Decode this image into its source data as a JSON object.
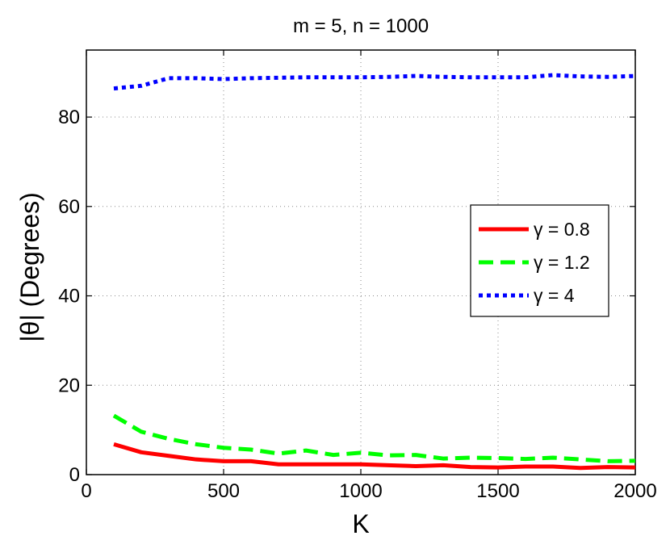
{
  "chart_data": {
    "type": "line",
    "title": "m = 5, n = 1000",
    "xlabel": "K",
    "ylabel": "|θ| (Degrees)",
    "xlim": [
      0,
      2000
    ],
    "ylim": [
      0,
      95
    ],
    "xticks": [
      0,
      500,
      1000,
      1500,
      2000
    ],
    "yticks": [
      0,
      20,
      40,
      60,
      80
    ],
    "grid": true,
    "legend_position": "center-right",
    "x": [
      100,
      200,
      300,
      400,
      500,
      600,
      700,
      800,
      900,
      1000,
      1100,
      1200,
      1300,
      1400,
      1500,
      1600,
      1700,
      1800,
      1900,
      2000
    ],
    "series": [
      {
        "name": "γ = 0.8",
        "color": "#ff0000",
        "style": "solid",
        "values": [
          6.8,
          5.0,
          4.2,
          3.4,
          3.0,
          3.0,
          2.3,
          2.3,
          2.3,
          2.3,
          2.1,
          1.9,
          2.1,
          1.7,
          1.6,
          1.8,
          1.8,
          1.5,
          1.7,
          1.6
        ]
      },
      {
        "name": "γ = 1.2",
        "color": "#00ff00",
        "style": "dashed",
        "values": [
          13.2,
          9.6,
          8.0,
          6.8,
          6.0,
          5.6,
          4.7,
          5.4,
          4.4,
          4.9,
          4.3,
          4.4,
          3.6,
          3.8,
          3.7,
          3.5,
          3.8,
          3.4,
          3.0,
          3.1
        ]
      },
      {
        "name": "γ = 4",
        "color": "#0000ff",
        "style": "dotted",
        "values": [
          86.4,
          87.0,
          88.7,
          88.7,
          88.5,
          88.7,
          88.8,
          88.9,
          88.9,
          88.9,
          89.0,
          89.2,
          89.0,
          88.9,
          88.9,
          88.9,
          89.4,
          89.1,
          89.0,
          89.2
        ]
      }
    ]
  }
}
